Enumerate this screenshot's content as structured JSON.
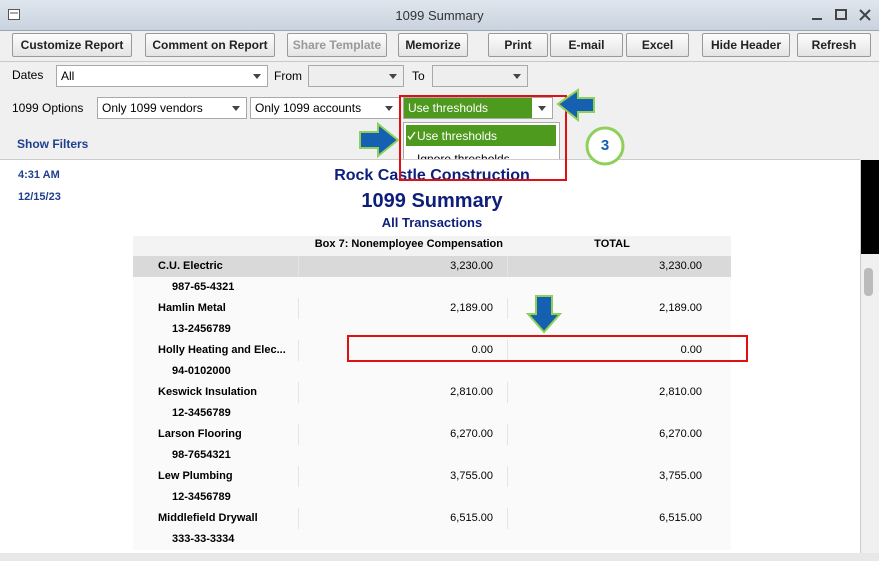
{
  "window": {
    "title": "1099 Summary"
  },
  "toolbar": [
    "Customize Report",
    "Comment on Report",
    "Share Template",
    "Memorize",
    "Print",
    "E-mail",
    "Excel",
    "Hide Header",
    "Refresh"
  ],
  "filters": {
    "dates_label": "Dates",
    "dates_value": "All",
    "from_label": "From",
    "to_label": "To",
    "options_label": "1099 Options",
    "vendors": "Only 1099 vendors",
    "accounts": "Only 1099 accounts",
    "threshold": "Use thresholds",
    "menu": [
      "Use thresholds",
      "Ignore thresholds"
    ]
  },
  "callout": "3",
  "show_filters": "Show Filters",
  "report": {
    "time": "4:31 AM",
    "date": "12/15/23",
    "company": "Rock Castle Construction",
    "title": "1099 Summary",
    "subtitle": "All Transactions",
    "columns": [
      "Box 7: Nonemployee Compensation",
      "TOTAL"
    ],
    "rows": [
      {
        "name": "C.U. Electric",
        "id": "987-65-4321",
        "box7": "3,230.00",
        "total": "3,230.00"
      },
      {
        "name": "Hamlin Metal",
        "id": "13-2456789",
        "box7": "2,189.00",
        "total": "2,189.00"
      },
      {
        "name": "Holly Heating and Elec...",
        "id": "94-0102000",
        "box7": "0.00",
        "total": "0.00"
      },
      {
        "name": "Keswick Insulation",
        "id": "12-3456789",
        "box7": "2,810.00",
        "total": "2,810.00"
      },
      {
        "name": "Larson Flooring",
        "id": "98-7654321",
        "box7": "6,270.00",
        "total": "6,270.00"
      },
      {
        "name": "Lew Plumbing",
        "id": "12-3456789",
        "box7": "3,755.00",
        "total": "3,755.00"
      },
      {
        "name": "Middlefield Drywall",
        "id": "333-33-3334",
        "box7": "6,515.00",
        "total": "6,515.00"
      }
    ]
  }
}
